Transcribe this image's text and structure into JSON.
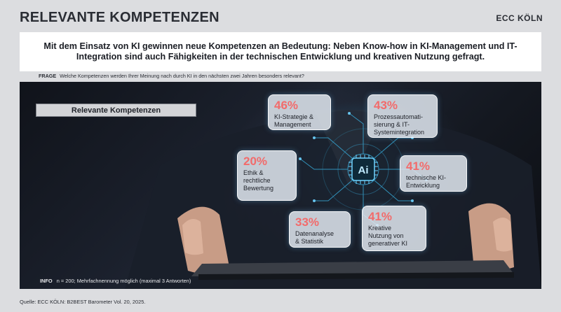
{
  "header": {
    "title": "RELEVANTE KOMPETENZEN",
    "brand": "ECC KÖLN"
  },
  "headline": "Mit dem Einsatz von KI gewinnen neue Kompetenzen an Bedeutung: Neben Know-how in KI-Management und IT-Integration sind auch Fähigkeiten in der technischen Entwicklung und kreativen Nutzung gefragt.",
  "question": {
    "label": "FRAGE",
    "text": "Welche Kompetenzen werden Ihrer Meinung nach durch KI in den nächsten zwei Jahren besonders relevant?"
  },
  "panel_label": "Relevante Kompetenzen",
  "center_chip": "Ai",
  "colors": {
    "percent": "#f26b6b",
    "accent": "#39b6e8"
  },
  "chart_data": {
    "type": "bar",
    "categories": [
      "KI-Strategie & Management",
      "Prozessautomatisierung & IT-Systemintegration",
      "Ethik & rechtliche Bewertung",
      "technische KI-Entwicklung",
      "Datenanalyse & Statistik",
      "Kreative Nutzung von generativer KI"
    ],
    "values": [
      46,
      43,
      20,
      41,
      33,
      41
    ],
    "display": [
      "46%",
      "43%",
      "20%",
      "41%",
      "33%",
      "41%"
    ],
    "labels": [
      "KI-Strategie &\nManagement",
      "Prozessautomati-\nsierung & IT-\nSystemintegration",
      "Ethik &\nrechtliche\nBewertung",
      "technische KI-\nEntwicklung",
      "Datenanalyse\n& Statistik",
      "Kreative\nNutzung von\ngenerativer KI"
    ],
    "unit": "%"
  },
  "info": {
    "label": "INFO",
    "text": "n = 200; Mehrfachnennung möglich (maximal 3 Antworten)"
  },
  "source": "Quelle: ECC KÖLN: B2BEST Barometer Vol. 20, 2025."
}
